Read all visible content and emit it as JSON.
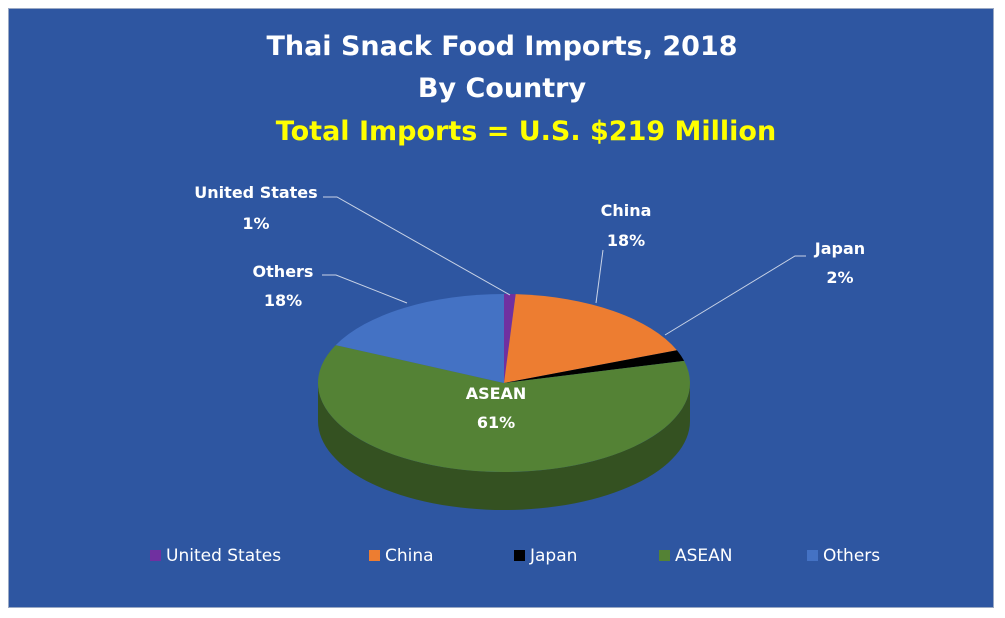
{
  "chart_data": {
    "type": "pie",
    "title": "Thai Snack Food Imports, 2018",
    "subtitle": "By Country",
    "subtitle2": "Total Imports  =  U.S. $219 Million",
    "legend_position": "bottom",
    "slices": [
      {
        "name": "United States",
        "value": 1,
        "label": "1%",
        "color": "#7030a0"
      },
      {
        "name": "China",
        "value": 18,
        "label": "18%",
        "color": "#ed7d31"
      },
      {
        "name": "Japan",
        "value": 2,
        "label": "2%",
        "color": "#000000"
      },
      {
        "name": "ASEAN",
        "value": 61,
        "label": "61%",
        "color": "#548235"
      },
      {
        "name": "Others",
        "value": 18,
        "label": "18%",
        "color": "#4472c4"
      }
    ]
  },
  "colors": {
    "background": "#2e56a1",
    "title": "#ffffff",
    "highlight": "#ffff00",
    "label": "#ffffff",
    "leader_line": "#c9d3e6"
  }
}
